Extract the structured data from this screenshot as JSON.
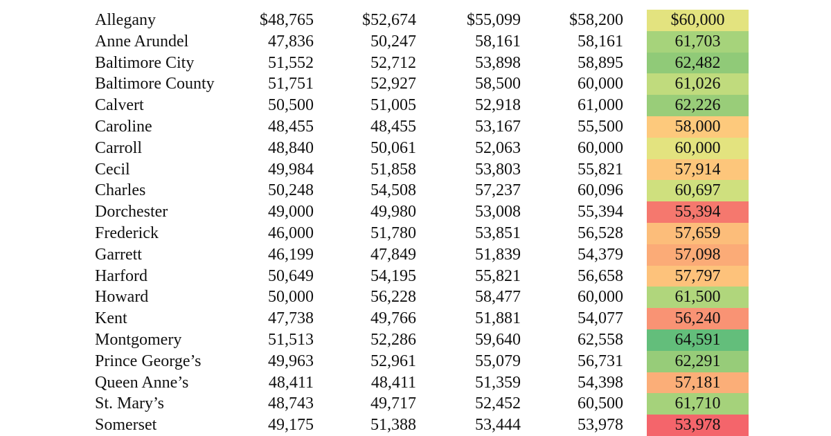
{
  "table": {
    "rows": [
      {
        "county": "Allegany",
        "v1": "$48,765",
        "v2": "$52,674",
        "v3": "$55,099",
        "v4": "$58,200",
        "v5": "$60,000",
        "v5_color": "#e3e37f"
      },
      {
        "county": "Anne Arundel",
        "v1": "47,836",
        "v2": "50,247",
        "v3": "58,161",
        "v4": "58,161",
        "v5": "61,703",
        "v5_color": "#a6d37b"
      },
      {
        "county": "Baltimore City",
        "v1": "51,552",
        "v2": "52,712",
        "v3": "53,898",
        "v4": "58,895",
        "v5": "62,482",
        "v5_color": "#90ca78"
      },
      {
        "county": "Baltimore County",
        "v1": "51,751",
        "v2": "52,927",
        "v3": "58,500",
        "v4": "60,000",
        "v5": "61,026",
        "v5_color": "#c0db7d"
      },
      {
        "county": "Calvert",
        "v1": "50,500",
        "v2": "51,005",
        "v3": "52,918",
        "v4": "61,000",
        "v5": "62,226",
        "v5_color": "#99cd79"
      },
      {
        "county": "Caroline",
        "v1": "48,455",
        "v2": "48,455",
        "v3": "53,167",
        "v4": "55,500",
        "v5": "58,000",
        "v5_color": "#fdc97c"
      },
      {
        "county": "Carroll",
        "v1": "48,840",
        "v2": "50,061",
        "v3": "52,063",
        "v4": "60,000",
        "v5": "60,000",
        "v5_color": "#e3e37f"
      },
      {
        "county": "Cecil",
        "v1": "49,984",
        "v2": "51,858",
        "v3": "53,803",
        "v4": "55,821",
        "v5": "57,914",
        "v5_color": "#fdc67b"
      },
      {
        "county": "Charles",
        "v1": "50,248",
        "v2": "54,508",
        "v3": "57,237",
        "v4": "60,096",
        "v5": "60,697",
        "v5_color": "#cfe07e"
      },
      {
        "county": "Dorchester",
        "v1": "49,000",
        "v2": "49,980",
        "v3": "53,008",
        "v4": "55,394",
        "v5": "55,394",
        "v5_color": "#f5786e"
      },
      {
        "county": "Frederick",
        "v1": "46,000",
        "v2": "51,780",
        "v3": "53,851",
        "v4": "56,528",
        "v5": "57,659",
        "v5_color": "#fcbd7a"
      },
      {
        "county": "Garrett",
        "v1": "46,199",
        "v2": "47,849",
        "v3": "51,839",
        "v4": "54,379",
        "v5": "57,098",
        "v5_color": "#fbab77"
      },
      {
        "county": "Harford",
        "v1": "50,649",
        "v2": "54,195",
        "v3": "55,821",
        "v4": "56,658",
        "v5": "57,797",
        "v5_color": "#fdc27b"
      },
      {
        "county": "Howard",
        "v1": "50,000",
        "v2": "56,228",
        "v3": "58,477",
        "v4": "60,000",
        "v5": "61,500",
        "v5_color": "#b0d67c"
      },
      {
        "county": "Kent",
        "v1": "47,738",
        "v2": "49,766",
        "v3": "51,881",
        "v4": "54,077",
        "v5": "56,240",
        "v5_color": "#f99374"
      },
      {
        "county": "Montgomery",
        "v1": "51,513",
        "v2": "52,286",
        "v3": "59,640",
        "v4": "62,558",
        "v5": "64,591",
        "v5_color": "#63be7b"
      },
      {
        "county": "Prince George’s",
        "v1": "49,963",
        "v2": "52,961",
        "v3": "55,079",
        "v4": "56,731",
        "v5": "62,291",
        "v5_color": "#97cc79"
      },
      {
        "county": "Queen Anne’s",
        "v1": "48,411",
        "v2": "48,411",
        "v3": "51,359",
        "v4": "54,398",
        "v5": "57,181",
        "v5_color": "#fbae78"
      },
      {
        "county": "St. Mary’s",
        "v1": "48,743",
        "v2": "49,717",
        "v3": "52,452",
        "v4": "60,500",
        "v5": "61,710",
        "v5_color": "#a5d27b"
      },
      {
        "county": "Somerset",
        "v1": "49,175",
        "v2": "51,388",
        "v3": "53,444",
        "v4": "53,978",
        "v5": "53,978",
        "v5_color": "#f4656b"
      }
    ]
  }
}
